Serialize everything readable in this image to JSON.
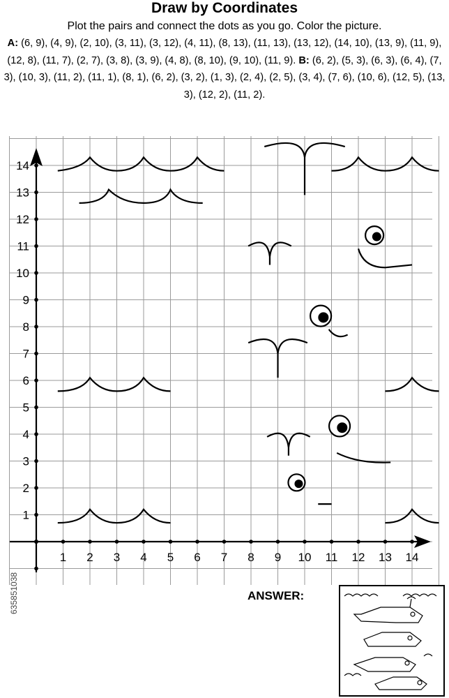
{
  "title": "Draw by Coordinates",
  "instructions": "Plot the pairs and connect the dots as you go. Color the picture.",
  "series_a_label": "A:",
  "series_a_text": "(6, 9), (4, 9), (2, 10), (3, 11), (3, 12), (4, 11), (8, 13), (11, 13), (13, 12), (14, 10), (13, 9), (11, 9), (12, 8), (11, 7), (2, 7), (3, 8), (3, 9), (4, 8), (8, 10), (9, 10), (11, 9).",
  "series_b_label": "B:",
  "series_b_text": "(6, 2), (5, 3), (6, 3), (6, 4), (7, 3), (10, 3), (11, 2), (11, 1), (8, 1), (6, 2), (3, 2), (1, 3), (2, 4), (2, 5), (3, 4), (7, 6), (10, 6), (12, 5), (13, 3), (12, 2), (11, 2).",
  "x_ticks": [
    "1",
    "2",
    "3",
    "4",
    "5",
    "6",
    "7",
    "8",
    "9",
    "10",
    "11",
    "12",
    "13",
    "14"
  ],
  "y_ticks": [
    "1",
    "2",
    "3",
    "4",
    "5",
    "6",
    "7",
    "8",
    "9",
    "10",
    "11",
    "12",
    "13",
    "14"
  ],
  "answer_label": "ANSWER:",
  "watermark_id": "635851038"
}
